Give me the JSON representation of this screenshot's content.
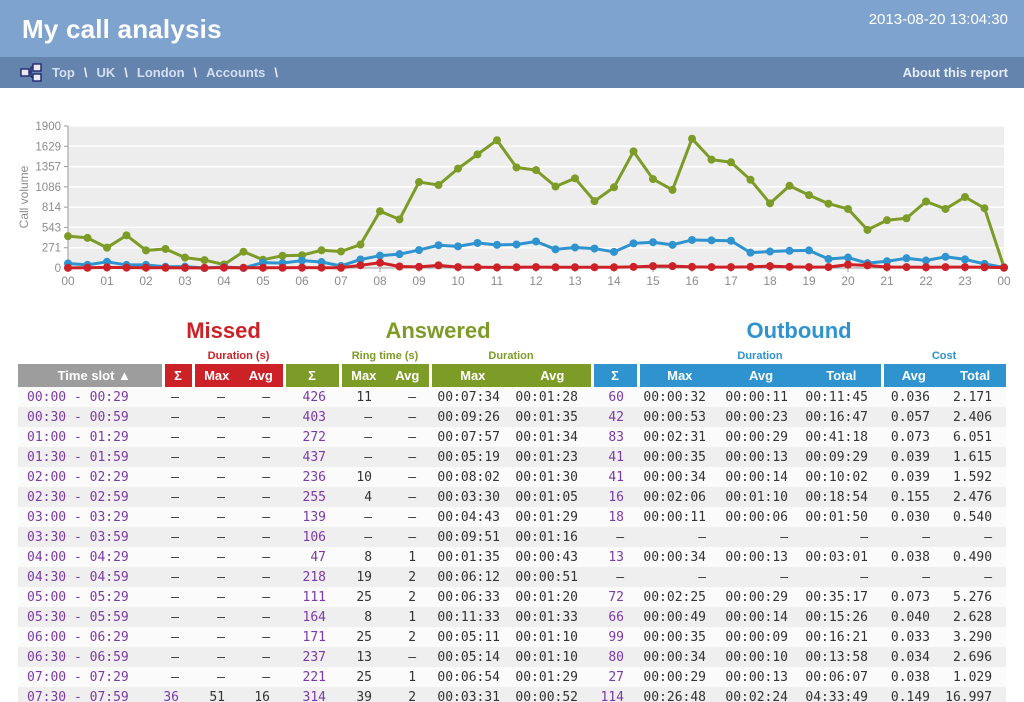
{
  "header": {
    "title": "My call analysis",
    "timestamp": "2013-08-20 13:04:30"
  },
  "breadcrumb": {
    "items": [
      "Top",
      "UK",
      "London",
      "Accounts"
    ],
    "separator": "\\",
    "about_link": "About this report"
  },
  "colors": {
    "banner_bg": "#7fa3cf",
    "breadcrumb_bg": "#6484ad",
    "missed": "#cc2127",
    "answered": "#7d9b27",
    "outbound": "#2e93ce",
    "timeslot_header_bg": "#9d9d9d",
    "link_purple": "#7c3aa8",
    "plot_bg": "#ededed",
    "axis_text": "#8c8c8c"
  },
  "chart_data": {
    "type": "line",
    "ylabel": "Call volume",
    "ylim": [
      0,
      1900
    ],
    "yticks": [
      0,
      271,
      543,
      814,
      1086,
      1357,
      1629,
      1900
    ],
    "x_tick_labels": [
      "00",
      "01",
      "02",
      "03",
      "04",
      "05",
      "06",
      "07",
      "08",
      "09",
      "10",
      "11",
      "12",
      "13",
      "14",
      "15",
      "16",
      "17",
      "18",
      "19",
      "20",
      "21",
      "22",
      "23",
      "00"
    ],
    "points_per_hour": 2,
    "grid": "horizontal-white",
    "legend": "none",
    "series": [
      {
        "name": "Answered",
        "color": "#7d9b27",
        "values": [
          426,
          403,
          272,
          437,
          236,
          255,
          139,
          106,
          47,
          218,
          111,
          164,
          171,
          237,
          221,
          314,
          760,
          650,
          1150,
          1110,
          1330,
          1520,
          1710,
          1345,
          1310,
          1090,
          1200,
          895,
          1080,
          1560,
          1190,
          1045,
          1730,
          1450,
          1415,
          1180,
          865,
          1100,
          975,
          860,
          790,
          510,
          640,
          665,
          890,
          790,
          950,
          800,
          10
        ]
      },
      {
        "name": "Outbound",
        "color": "#2e93ce",
        "values": [
          60,
          42,
          83,
          41,
          41,
          16,
          18,
          0,
          13,
          0,
          72,
          66,
          99,
          80,
          27,
          114,
          165,
          185,
          240,
          305,
          290,
          335,
          310,
          315,
          355,
          250,
          275,
          260,
          215,
          330,
          345,
          310,
          375,
          370,
          365,
          205,
          220,
          230,
          235,
          120,
          140,
          65,
          90,
          130,
          100,
          150,
          115,
          55,
          5
        ]
      },
      {
        "name": "Missed",
        "color": "#cc2127",
        "values": [
          2,
          3,
          8,
          5,
          4,
          3,
          2,
          1,
          5,
          3,
          4,
          3,
          5,
          4,
          3,
          36,
          70,
          20,
          15,
          35,
          12,
          10,
          8,
          10,
          12,
          10,
          10,
          10,
          10,
          15,
          25,
          25,
          15,
          12,
          12,
          15,
          25,
          15,
          12,
          12,
          45,
          35,
          12,
          12,
          10,
          12,
          12,
          10,
          5
        ]
      }
    ]
  },
  "table": {
    "groups": [
      {
        "label": "Missed"
      },
      {
        "label": "Answered"
      },
      {
        "label": "Outbound"
      }
    ],
    "subheaders": [
      {
        "label": "Duration (s)"
      },
      {
        "label": "Ring time (s)"
      },
      {
        "label": "Duration"
      },
      {
        "label": "Duration"
      },
      {
        "label": "Cost"
      }
    ],
    "columns": [
      "Time slot ▲",
      "Σ",
      "Max",
      "Avg",
      "Σ",
      "Max",
      "Avg",
      "Max",
      "Avg",
      "Σ",
      "Max",
      "Avg",
      "Total",
      "Avg",
      "Total"
    ],
    "rows": [
      [
        "00:00 - 00:29",
        "–",
        "–",
        "–",
        "426",
        "11",
        "–",
        "00:07:34",
        "00:01:28",
        "60",
        "00:00:32",
        "00:00:11",
        "00:11:45",
        "0.036",
        "2.171"
      ],
      [
        "00:30 - 00:59",
        "–",
        "–",
        "–",
        "403",
        "–",
        "–",
        "00:09:26",
        "00:01:35",
        "42",
        "00:00:53",
        "00:00:23",
        "00:16:47",
        "0.057",
        "2.406"
      ],
      [
        "01:00 - 01:29",
        "–",
        "–",
        "–",
        "272",
        "–",
        "–",
        "00:07:57",
        "00:01:34",
        "83",
        "00:02:31",
        "00:00:29",
        "00:41:18",
        "0.073",
        "6.051"
      ],
      [
        "01:30 - 01:59",
        "–",
        "–",
        "–",
        "437",
        "–",
        "–",
        "00:05:19",
        "00:01:23",
        "41",
        "00:00:35",
        "00:00:13",
        "00:09:29",
        "0.039",
        "1.615"
      ],
      [
        "02:00 - 02:29",
        "–",
        "–",
        "–",
        "236",
        "10",
        "–",
        "00:08:02",
        "00:01:30",
        "41",
        "00:00:34",
        "00:00:14",
        "00:10:02",
        "0.039",
        "1.592"
      ],
      [
        "02:30 - 02:59",
        "–",
        "–",
        "–",
        "255",
        "4",
        "–",
        "00:03:30",
        "00:01:05",
        "16",
        "00:02:06",
        "00:01:10",
        "00:18:54",
        "0.155",
        "2.476"
      ],
      [
        "03:00 - 03:29",
        "–",
        "–",
        "–",
        "139",
        "–",
        "–",
        "00:04:43",
        "00:01:29",
        "18",
        "00:00:11",
        "00:00:06",
        "00:01:50",
        "0.030",
        "0.540"
      ],
      [
        "03:30 - 03:59",
        "–",
        "–",
        "–",
        "106",
        "–",
        "–",
        "00:09:51",
        "00:01:16",
        "–",
        "–",
        "–",
        "–",
        "–",
        "–"
      ],
      [
        "04:00 - 04:29",
        "–",
        "–",
        "–",
        "47",
        "8",
        "1",
        "00:01:35",
        "00:00:43",
        "13",
        "00:00:34",
        "00:00:13",
        "00:03:01",
        "0.038",
        "0.490"
      ],
      [
        "04:30 - 04:59",
        "–",
        "–",
        "–",
        "218",
        "19",
        "2",
        "00:06:12",
        "00:00:51",
        "–",
        "–",
        "–",
        "–",
        "–",
        "–"
      ],
      [
        "05:00 - 05:29",
        "–",
        "–",
        "–",
        "111",
        "25",
        "2",
        "00:06:33",
        "00:01:20",
        "72",
        "00:02:25",
        "00:00:29",
        "00:35:17",
        "0.073",
        "5.276"
      ],
      [
        "05:30 - 05:59",
        "–",
        "–",
        "–",
        "164",
        "8",
        "1",
        "00:11:33",
        "00:01:33",
        "66",
        "00:00:49",
        "00:00:14",
        "00:15:26",
        "0.040",
        "2.628"
      ],
      [
        "06:00 - 06:29",
        "–",
        "–",
        "–",
        "171",
        "25",
        "2",
        "00:05:11",
        "00:01:10",
        "99",
        "00:00:35",
        "00:00:09",
        "00:16:21",
        "0.033",
        "3.290"
      ],
      [
        "06:30 - 06:59",
        "–",
        "–",
        "–",
        "237",
        "13",
        "–",
        "00:05:14",
        "00:01:10",
        "80",
        "00:00:34",
        "00:00:10",
        "00:13:58",
        "0.034",
        "2.696"
      ],
      [
        "07:00 - 07:29",
        "–",
        "–",
        "–",
        "221",
        "25",
        "1",
        "00:06:54",
        "00:01:29",
        "27",
        "00:00:29",
        "00:00:13",
        "00:06:07",
        "0.038",
        "1.029"
      ],
      [
        "07:30 - 07:59",
        "36",
        "51",
        "16",
        "314",
        "39",
        "2",
        "00:03:31",
        "00:00:52",
        "114",
        "00:26:48",
        "00:02:24",
        "04:33:49",
        "0.149",
        "16.997"
      ]
    ]
  }
}
